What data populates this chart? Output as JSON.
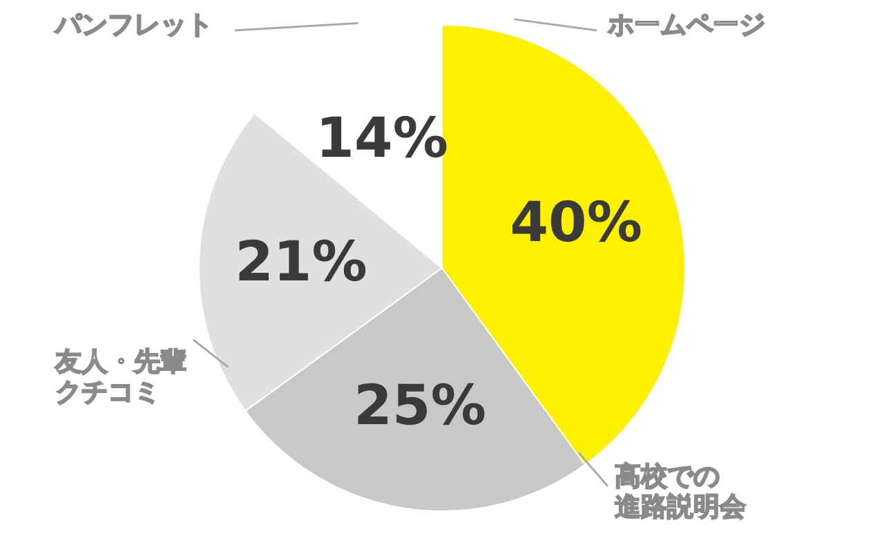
{
  "chart_data": {
    "type": "pie",
    "categories": [
      "ホームページ",
      "高校での進路説明会",
      "友人・先輩クチコミ",
      "パンフレット"
    ],
    "values": [
      40,
      25,
      21,
      14
    ],
    "colors": [
      "#fff000",
      "#c8c8c8",
      "#e0e0e0",
      "#ffffff"
    ],
    "value_labels": [
      "40%",
      "25%",
      "21%",
      "14%"
    ]
  }
}
